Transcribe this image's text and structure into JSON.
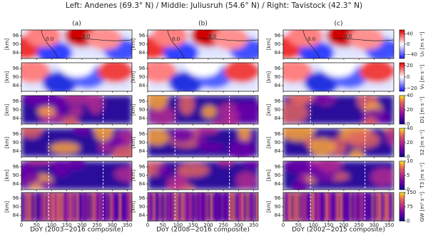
{
  "chart_data": {
    "type": "heatmap",
    "title": "Left: Andenes (69.3° N) / Middle: Juliusruh (54.6° N) / Right: Tavistock (42.3° N)",
    "columns": [
      {
        "label": "(a)",
        "xlabel": "DoY (2003−2016 composite)"
      },
      {
        "label": "(b)",
        "xlabel": "DoY (2008−2016 composite)"
      },
      {
        "label": "(c)",
        "xlabel": "DoY (2002−2015 composite)"
      }
    ],
    "ylabel": "[km]",
    "ylim": [
      80,
      100
    ],
    "yticks": [
      84,
      90,
      96
    ],
    "xlim": [
      0,
      365
    ],
    "xticks": [
      0,
      50,
      100,
      150,
      200,
      250,
      300,
      350
    ],
    "rows": [
      {
        "colorbar_label": "U₀ [m s⁻¹]",
        "colormap": "bwr",
        "clim": [
          -55,
          55
        ],
        "cticks": [
          {
            "value": -40,
            "label": "−40"
          },
          0,
          40
        ],
        "contour_label": "0.0"
      },
      {
        "colorbar_label": "V₀ [m s⁻¹]",
        "colormap": "bwr",
        "clim": [
          -25,
          25
        ],
        "cticks": [
          {
            "value": -20,
            "label": "−20"
          },
          0,
          20
        ]
      },
      {
        "colorbar_label": "D1 [m s⁻¹]",
        "colormap": "plasma",
        "clim": [
          0,
          40
        ],
        "cticks": [
          0,
          20,
          40
        ]
      },
      {
        "colorbar_label": "S2 [m s⁻¹]",
        "colormap": "plasma",
        "clim": [
          0,
          40
        ],
        "cticks": [
          0,
          20,
          40
        ]
      },
      {
        "colorbar_label": "T3 [m s⁻¹]",
        "colormap": "plasma",
        "clim": [
          0,
          10
        ],
        "cticks": [
          0,
          5,
          10
        ]
      },
      {
        "colorbar_label": "GW [m² s⁻²]",
        "colormap": "plasma",
        "clim": [
          0,
          150
        ],
        "cticks": [
          0,
          75,
          150
        ]
      }
    ]
  }
}
